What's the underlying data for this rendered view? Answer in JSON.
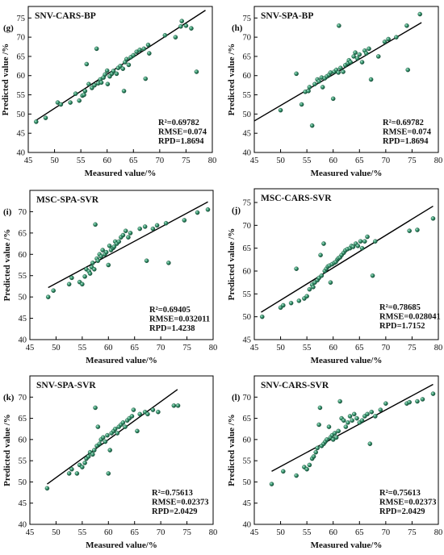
{
  "chart_data": [
    {
      "type": "scatter",
      "panel_label": "(g)",
      "title": "SNV-CARS-BP",
      "xlabel": "Measured value/%",
      "ylabel": "Predicted value /%",
      "xlim": [
        45,
        80
      ],
      "ylim": [
        40,
        78
      ],
      "xticks": [
        45,
        50,
        55,
        60,
        65,
        70,
        75,
        80
      ],
      "yticks": [
        40,
        45,
        50,
        55,
        60,
        65,
        70,
        75
      ],
      "stats": [
        "R²=0.69782",
        "RMSE=0.074",
        "RPD=1.8694"
      ],
      "fit_line": [
        [
          46.3,
          48.2
        ],
        [
          78.7,
          77.0
        ]
      ],
      "points": [
        [
          46.5,
          48.0
        ],
        [
          48.3,
          49.0
        ],
        [
          50.6,
          53.0
        ],
        [
          51.2,
          52.5
        ],
        [
          53.0,
          53.0
        ],
        [
          54.0,
          55.3
        ],
        [
          54.7,
          53.5
        ],
        [
          55.3,
          54.8
        ],
        [
          55.6,
          55.0
        ],
        [
          55.8,
          56.0
        ],
        [
          56.1,
          63.0
        ],
        [
          56.5,
          57.8
        ],
        [
          57.1,
          56.8
        ],
        [
          57.6,
          57.5
        ],
        [
          58.0,
          67.0
        ],
        [
          58.3,
          58.0
        ],
        [
          58.7,
          59.0
        ],
        [
          58.9,
          58.2
        ],
        [
          59.3,
          59.5
        ],
        [
          59.6,
          60.3
        ],
        [
          60.0,
          61.3
        ],
        [
          60.1,
          57.8
        ],
        [
          60.5,
          59.8
        ],
        [
          60.9,
          60.5
        ],
        [
          61.2,
          61.2
        ],
        [
          61.8,
          60.5
        ],
        [
          62.1,
          62.0
        ],
        [
          62.5,
          62.5
        ],
        [
          63.0,
          61.8
        ],
        [
          63.2,
          56.0
        ],
        [
          63.4,
          63.5
        ],
        [
          63.7,
          64.3
        ],
        [
          64.1,
          62.8
        ],
        [
          64.5,
          64.8
        ],
        [
          65.0,
          65.3
        ],
        [
          65.6,
          66.2
        ],
        [
          66.2,
          66.7
        ],
        [
          67.0,
          67.0
        ],
        [
          67.3,
          59.2
        ],
        [
          67.8,
          68.0
        ],
        [
          68.0,
          65.8
        ],
        [
          71.0,
          70.5
        ],
        [
          73.0,
          70.0
        ],
        [
          74.0,
          72.8
        ],
        [
          74.2,
          74.2
        ],
        [
          75.0,
          73.0
        ],
        [
          76.0,
          72.3
        ],
        [
          77.0,
          61.0
        ]
      ]
    },
    {
      "type": "scatter",
      "panel_label": "(h)",
      "title": "SNV-SPA-BP",
      "xlabel": "Measured value/%",
      "ylabel": "Predicted value /%",
      "xlim": [
        45,
        80
      ],
      "ylim": [
        40,
        78
      ],
      "xticks": [
        45,
        50,
        55,
        60,
        65,
        70,
        75,
        80
      ],
      "yticks": [
        40,
        45,
        50,
        55,
        60,
        65,
        70,
        75
      ],
      "stats": [
        "R²=0.69782",
        "RMSE=0.074",
        "RPD=1.8694"
      ],
      "fit_line": [
        [
          45.0,
          48.2
        ],
        [
          76.8,
          73.8
        ]
      ],
      "points": [
        [
          50.0,
          51.0
        ],
        [
          53.0,
          60.5
        ],
        [
          54.0,
          52.5
        ],
        [
          54.7,
          55.8
        ],
        [
          55.3,
          56.0
        ],
        [
          55.5,
          57.0
        ],
        [
          56.0,
          47.0
        ],
        [
          56.5,
          57.8
        ],
        [
          57.0,
          59.0
        ],
        [
          57.3,
          58.5
        ],
        [
          57.8,
          59.5
        ],
        [
          58.0,
          57.0
        ],
        [
          58.4,
          59.3
        ],
        [
          58.8,
          59.8
        ],
        [
          59.2,
          60.2
        ],
        [
          59.5,
          60.8
        ],
        [
          60.0,
          54.0
        ],
        [
          60.2,
          61.0
        ],
        [
          60.6,
          61.5
        ],
        [
          61.0,
          60.8
        ],
        [
          61.1,
          73.0
        ],
        [
          61.4,
          62.0
        ],
        [
          61.9,
          61.0
        ],
        [
          62.3,
          62.7
        ],
        [
          62.8,
          63.2
        ],
        [
          63.0,
          64.0
        ],
        [
          63.3,
          63.5
        ],
        [
          63.9,
          65.0
        ],
        [
          64.2,
          66.0
        ],
        [
          64.6,
          64.5
        ],
        [
          65.0,
          65.5
        ],
        [
          65.5,
          63.5
        ],
        [
          66.0,
          66.5
        ],
        [
          66.3,
          65.8
        ],
        [
          66.8,
          67.0
        ],
        [
          67.2,
          59.0
        ],
        [
          68.6,
          65.0
        ],
        [
          69.8,
          68.8
        ],
        [
          70.5,
          69.5
        ],
        [
          72.0,
          70.0
        ],
        [
          74.0,
          73.0
        ],
        [
          74.2,
          61.5
        ],
        [
          76.5,
          76.0
        ]
      ]
    },
    {
      "type": "scatter",
      "panel_label": "(i)",
      "title": "MSC-SPA-SVR",
      "xlabel": "Measured value/%",
      "ylabel": "Predicted value /%",
      "xlim": [
        45,
        80
      ],
      "ylim": [
        40,
        75
      ],
      "xticks": [
        45,
        50,
        55,
        60,
        65,
        70,
        75,
        80
      ],
      "yticks": [
        40,
        45,
        50,
        55,
        60,
        65,
        70
      ],
      "stats": [
        "R²=0.69405",
        "RMSE=0.032011",
        "RPD=1.4238"
      ],
      "fit_line": [
        [
          48.5,
          52.2
        ],
        [
          79.0,
          72.3
        ]
      ],
      "points": [
        [
          48.5,
          50.0
        ],
        [
          49.5,
          51.5
        ],
        [
          52.5,
          53.0
        ],
        [
          53.0,
          54.5
        ],
        [
          54.5,
          53.5
        ],
        [
          55.0,
          53.0
        ],
        [
          55.5,
          54.8
        ],
        [
          55.8,
          56.5
        ],
        [
          56.3,
          56.0
        ],
        [
          56.5,
          55.5
        ],
        [
          56.8,
          57.0
        ],
        [
          57.0,
          58.0
        ],
        [
          57.3,
          56.5
        ],
        [
          57.5,
          67.0
        ],
        [
          57.8,
          59.0
        ],
        [
          58.0,
          58.5
        ],
        [
          58.3,
          60.0
        ],
        [
          58.6,
          59.5
        ],
        [
          58.9,
          61.0
        ],
        [
          59.3,
          60.0
        ],
        [
          59.6,
          60.5
        ],
        [
          60.0,
          57.5
        ],
        [
          60.2,
          62.0
        ],
        [
          60.5,
          61.0
        ],
        [
          60.9,
          61.5
        ],
        [
          61.1,
          61.8
        ],
        [
          61.3,
          63.0
        ],
        [
          61.6,
          62.5
        ],
        [
          62.0,
          63.0
        ],
        [
          62.4,
          64.0
        ],
        [
          62.8,
          64.5
        ],
        [
          63.3,
          65.5
        ],
        [
          63.8,
          64.0
        ],
        [
          64.2,
          65.0
        ],
        [
          66.0,
          66.0
        ],
        [
          67.0,
          66.5
        ],
        [
          67.3,
          58.5
        ],
        [
          68.5,
          66.0
        ],
        [
          69.3,
          66.8
        ],
        [
          71.0,
          67.3
        ],
        [
          71.5,
          58.0
        ],
        [
          74.5,
          68.0
        ],
        [
          77.0,
          69.8
        ],
        [
          79.0,
          70.5
        ]
      ]
    },
    {
      "type": "scatter",
      "panel_label": "(j)",
      "title": "MSC-CARS-SVR",
      "xlabel": "Measured value/%",
      "ylabel": "Predicted value /%",
      "xlim": [
        45,
        80
      ],
      "ylim": [
        45,
        78
      ],
      "xticks": [
        45,
        50,
        55,
        60,
        65,
        70,
        75,
        80
      ],
      "yticks": [
        45,
        50,
        55,
        60,
        65,
        70,
        75
      ],
      "stats": [
        "R²=0.78685",
        "RMSE=0.028041",
        "RPD=1.7152"
      ],
      "fit_line": [
        [
          46.3,
          51.0
        ],
        [
          79.0,
          74.2
        ]
      ],
      "points": [
        [
          46.5,
          50.0
        ],
        [
          50.0,
          52.0
        ],
        [
          50.5,
          52.5
        ],
        [
          52.0,
          53.0
        ],
        [
          53.0,
          60.5
        ],
        [
          53.5,
          53.5
        ],
        [
          54.5,
          54.0
        ],
        [
          55.0,
          54.5
        ],
        [
          55.5,
          56.0
        ],
        [
          56.0,
          57.0
        ],
        [
          56.2,
          56.5
        ],
        [
          56.5,
          57.5
        ],
        [
          57.0,
          58.0
        ],
        [
          57.3,
          58.5
        ],
        [
          57.6,
          63.5
        ],
        [
          57.8,
          59.0
        ],
        [
          58.2,
          66.0
        ],
        [
          58.4,
          60.0
        ],
        [
          58.7,
          60.5
        ],
        [
          59.0,
          61.0
        ],
        [
          59.3,
          61.2
        ],
        [
          59.5,
          57.5
        ],
        [
          59.8,
          61.5
        ],
        [
          60.2,
          61.8
        ],
        [
          60.5,
          62.0
        ],
        [
          60.8,
          62.5
        ],
        [
          61.0,
          62.8
        ],
        [
          61.3,
          63.0
        ],
        [
          61.6,
          63.5
        ],
        [
          62.0,
          64.0
        ],
        [
          62.3,
          64.5
        ],
        [
          62.7,
          64.8
        ],
        [
          63.2,
          65.0
        ],
        [
          63.5,
          65.5
        ],
        [
          63.8,
          65.3
        ],
        [
          64.3,
          66.0
        ],
        [
          64.7,
          65.5
        ],
        [
          65.2,
          66.5
        ],
        [
          65.5,
          65.0
        ],
        [
          66.0,
          66.5
        ],
        [
          66.5,
          67.5
        ],
        [
          67.5,
          59.0
        ],
        [
          68.0,
          66.5
        ],
        [
          74.5,
          68.8
        ],
        [
          76.0,
          69.0
        ],
        [
          79.0,
          71.5
        ]
      ]
    },
    {
      "type": "scatter",
      "panel_label": "(k)",
      "title": "SNV-SPA-SVR",
      "xlabel": "Measured value/%",
      "ylabel": "Predicted value /%",
      "xlim": [
        45,
        80
      ],
      "ylim": [
        40,
        75
      ],
      "xticks": [
        45,
        50,
        55,
        60,
        65,
        70,
        75,
        80
      ],
      "yticks": [
        40,
        45,
        50,
        55,
        60,
        65,
        70
      ],
      "stats": [
        "R²=0.75613",
        "RMSE=0.02373",
        "RPD=2.0429"
      ],
      "fit_line": [
        [
          48.3,
          49.5
        ],
        [
          73.2,
          71.8
        ]
      ],
      "points": [
        [
          48.3,
          48.5
        ],
        [
          52.5,
          52.0
        ],
        [
          53.0,
          53.0
        ],
        [
          54.0,
          52.0
        ],
        [
          54.5,
          54.0
        ],
        [
          55.0,
          53.5
        ],
        [
          55.5,
          54.5
        ],
        [
          55.8,
          55.5
        ],
        [
          56.2,
          56.0
        ],
        [
          56.5,
          57.0
        ],
        [
          57.0,
          56.5
        ],
        [
          57.3,
          57.5
        ],
        [
          57.5,
          67.5
        ],
        [
          57.8,
          58.5
        ],
        [
          58.0,
          63.0
        ],
        [
          58.3,
          59.0
        ],
        [
          58.6,
          60.0
        ],
        [
          59.0,
          60.5
        ],
        [
          59.4,
          59.5
        ],
        [
          59.8,
          61.0
        ],
        [
          60.0,
          52.0
        ],
        [
          60.3,
          57.5
        ],
        [
          60.6,
          61.5
        ],
        [
          61.0,
          62.0
        ],
        [
          61.3,
          62.5
        ],
        [
          61.7,
          61.5
        ],
        [
          62.0,
          63.0
        ],
        [
          62.4,
          63.5
        ],
        [
          62.8,
          64.0
        ],
        [
          63.2,
          63.0
        ],
        [
          63.6,
          64.5
        ],
        [
          64.0,
          65.0
        ],
        [
          64.5,
          65.5
        ],
        [
          64.8,
          67.0
        ],
        [
          65.5,
          62.0
        ],
        [
          66.0,
          66.0
        ],
        [
          67.0,
          66.5
        ],
        [
          67.5,
          66.0
        ],
        [
          68.5,
          67.0
        ],
        [
          69.5,
          66.5
        ],
        [
          72.5,
          68.0
        ],
        [
          73.3,
          68.0
        ]
      ]
    },
    {
      "type": "scatter",
      "panel_label": "(l)",
      "title": "SNV-CARS-SVR",
      "xlabel": "Measured value/%",
      "ylabel": "Predicted value /%",
      "xlim": [
        45,
        80
      ],
      "ylim": [
        40,
        75
      ],
      "xticks": [
        45,
        50,
        55,
        60,
        65,
        70,
        75,
        80
      ],
      "yticks": [
        40,
        45,
        50,
        55,
        60,
        65,
        70
      ],
      "stats": [
        "R²=0.75613",
        "RMSE=0.02373",
        "RPD=2.0429"
      ],
      "fit_line": [
        [
          48.3,
          52.5
        ],
        [
          79.0,
          73.0
        ]
      ],
      "points": [
        [
          48.3,
          49.5
        ],
        [
          50.5,
          52.5
        ],
        [
          53.0,
          51.5
        ],
        [
          54.5,
          53.5
        ],
        [
          55.0,
          53.0
        ],
        [
          55.5,
          54.0
        ],
        [
          56.0,
          55.5
        ],
        [
          56.3,
          56.0
        ],
        [
          56.7,
          57.0
        ],
        [
          57.0,
          58.0
        ],
        [
          57.3,
          63.5
        ],
        [
          57.5,
          67.5
        ],
        [
          57.8,
          58.5
        ],
        [
          58.2,
          59.0
        ],
        [
          58.5,
          59.5
        ],
        [
          58.8,
          60.0
        ],
        [
          59.2,
          63.0
        ],
        [
          59.5,
          60.5
        ],
        [
          59.8,
          61.0
        ],
        [
          60.0,
          60.0
        ],
        [
          60.3,
          61.5
        ],
        [
          60.6,
          60.5
        ],
        [
          61.0,
          62.0
        ],
        [
          61.3,
          69.0
        ],
        [
          61.6,
          65.0
        ],
        [
          62.0,
          64.5
        ],
        [
          62.4,
          63.0
        ],
        [
          62.8,
          64.0
        ],
        [
          63.2,
          65.5
        ],
        [
          63.6,
          64.5
        ],
        [
          64.0,
          66.0
        ],
        [
          64.5,
          65.0
        ],
        [
          65.0,
          64.0
        ],
        [
          65.5,
          64.5
        ],
        [
          66.0,
          65.5
        ],
        [
          66.5,
          66.0
        ],
        [
          67.0,
          59.0
        ],
        [
          67.3,
          66.5
        ],
        [
          68.0,
          65.5
        ],
        [
          69.0,
          67.0
        ],
        [
          70.0,
          68.5
        ],
        [
          74.0,
          68.5
        ],
        [
          74.5,
          68.8
        ],
        [
          76.0,
          69.0
        ],
        [
          77.0,
          69.5
        ],
        [
          79.0,
          70.8
        ]
      ]
    }
  ]
}
